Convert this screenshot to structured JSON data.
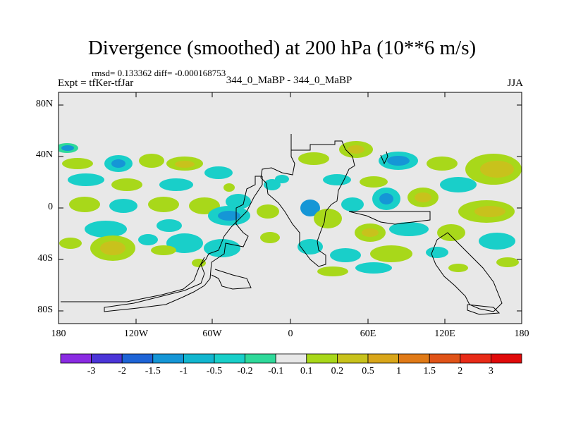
{
  "title": "Divergence (smoothed) at 200 hPa (10**6 m/s)",
  "stats": "rmsd= 0.133362 diff= -0.000168753",
  "experiment": "Expt = tfKer-tfJar",
  "center_label": "344_0_MaBP - 344_0_MaBP",
  "season": "JJA",
  "y_ticks": [
    "80N",
    "40N",
    "0",
    "40S",
    "80S"
  ],
  "x_ticks": [
    "180",
    "120W",
    "60W",
    "0",
    "60E",
    "120E",
    "180"
  ],
  "colorbar": {
    "labels": [
      "-3",
      "-2",
      "-1.5",
      "-1",
      "-0.5",
      "-0.2",
      "-0.1",
      "0.1",
      "0.2",
      "0.5",
      "1",
      "1.5",
      "2",
      "3"
    ],
    "colors": [
      "#8a2be2",
      "#4b35d8",
      "#1e64d6",
      "#1596d6",
      "#12b6cf",
      "#19cfc9",
      "#2fd99a",
      "#e8e8e8",
      "#a8d81a",
      "#c8c21c",
      "#d9a61a",
      "#e07a17",
      "#e05318",
      "#e82b18",
      "#e00a0a"
    ]
  },
  "map": {
    "background_color": "#e8e8e8",
    "lat_range": [
      -90,
      90
    ],
    "lon_range": [
      -180,
      180
    ]
  }
}
